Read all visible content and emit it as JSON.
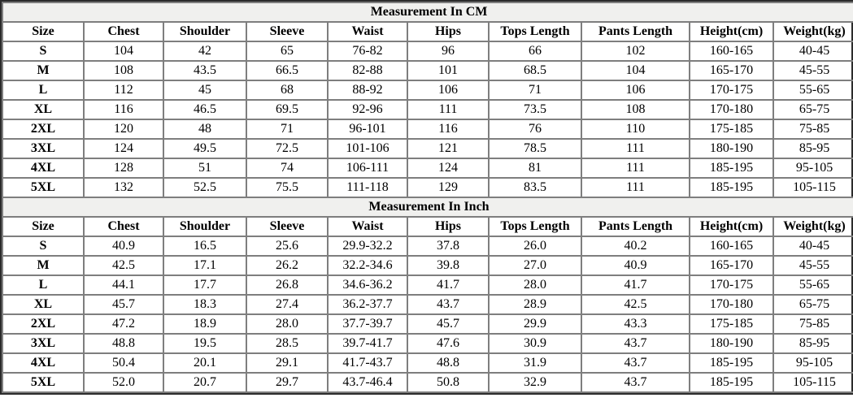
{
  "page": {
    "background": "#ffffff",
    "grid_border_color": "#7e7e7e",
    "outer_border_color": "#2b2b2b",
    "title_band_background": "#f0f0ee",
    "text_color": "#000000"
  },
  "columns": [
    "Size",
    "Chest",
    "Shoulder",
    "Sleeve",
    "Waist",
    "Hips",
    "Tops Length",
    "Pants Length",
    "Height(cm)",
    "Weight(kg)"
  ],
  "tables": [
    {
      "title": "Measurement In CM",
      "rows": [
        [
          "S",
          "104",
          "42",
          "65",
          "76-82",
          "96",
          "66",
          "102",
          "160-165",
          "40-45"
        ],
        [
          "M",
          "108",
          "43.5",
          "66.5",
          "82-88",
          "101",
          "68.5",
          "104",
          "165-170",
          "45-55"
        ],
        [
          "L",
          "112",
          "45",
          "68",
          "88-92",
          "106",
          "71",
          "106",
          "170-175",
          "55-65"
        ],
        [
          "XL",
          "116",
          "46.5",
          "69.5",
          "92-96",
          "111",
          "73.5",
          "108",
          "170-180",
          "65-75"
        ],
        [
          "2XL",
          "120",
          "48",
          "71",
          "96-101",
          "116",
          "76",
          "110",
          "175-185",
          "75-85"
        ],
        [
          "3XL",
          "124",
          "49.5",
          "72.5",
          "101-106",
          "121",
          "78.5",
          "111",
          "180-190",
          "85-95"
        ],
        [
          "4XL",
          "128",
          "51",
          "74",
          "106-111",
          "124",
          "81",
          "111",
          "185-195",
          "95-105"
        ],
        [
          "5XL",
          "132",
          "52.5",
          "75.5",
          "111-118",
          "129",
          "83.5",
          "111",
          "185-195",
          "105-115"
        ]
      ]
    },
    {
      "title": "Measurement In Inch",
      "rows": [
        [
          "S",
          "40.9",
          "16.5",
          "25.6",
          "29.9-32.2",
          "37.8",
          "26.0",
          "40.2",
          "160-165",
          "40-45"
        ],
        [
          "M",
          "42.5",
          "17.1",
          "26.2",
          "32.2-34.6",
          "39.8",
          "27.0",
          "40.9",
          "165-170",
          "45-55"
        ],
        [
          "L",
          "44.1",
          "17.7",
          "26.8",
          "34.6-36.2",
          "41.7",
          "28.0",
          "41.7",
          "170-175",
          "55-65"
        ],
        [
          "XL",
          "45.7",
          "18.3",
          "27.4",
          "36.2-37.7",
          "43.7",
          "28.9",
          "42.5",
          "170-180",
          "65-75"
        ],
        [
          "2XL",
          "47.2",
          "18.9",
          "28.0",
          "37.7-39.7",
          "45.7",
          "29.9",
          "43.3",
          "175-185",
          "75-85"
        ],
        [
          "3XL",
          "48.8",
          "19.5",
          "28.5",
          "39.7-41.7",
          "47.6",
          "30.9",
          "43.7",
          "180-190",
          "85-95"
        ],
        [
          "4XL",
          "50.4",
          "20.1",
          "29.1",
          "41.7-43.7",
          "48.8",
          "31.9",
          "43.7",
          "185-195",
          "95-105"
        ],
        [
          "5XL",
          "52.0",
          "20.7",
          "29.7",
          "43.7-46.4",
          "50.8",
          "32.9",
          "43.7",
          "185-195",
          "105-115"
        ]
      ]
    }
  ]
}
